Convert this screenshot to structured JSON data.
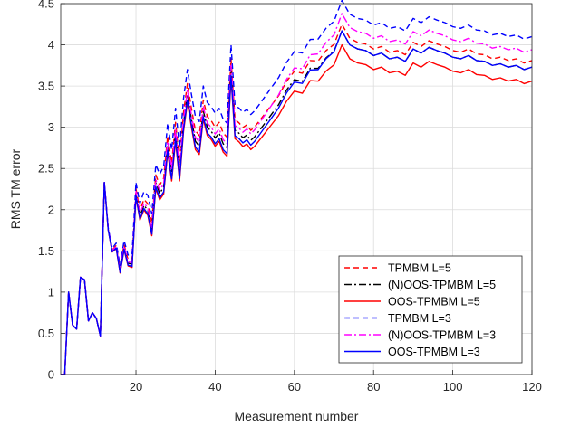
{
  "chart_data": {
    "type": "line",
    "xlabel": "Measurement number",
    "ylabel": "RMS TM error",
    "xlim": [
      1,
      120
    ],
    "ylim": [
      0,
      4.5
    ],
    "xticks": [
      20,
      40,
      60,
      80,
      100,
      120
    ],
    "yticks": [
      0,
      0.5,
      1,
      1.5,
      2,
      2.5,
      3,
      3.5,
      4,
      4.5
    ],
    "ytick_labels": [
      "0",
      "0.5",
      "1",
      "1.5",
      "2",
      "2.5",
      "3",
      "3.5",
      "4",
      "4.5"
    ],
    "grid": true,
    "legend_position": "bottom-right",
    "base_x": [
      1,
      2,
      3,
      4,
      5,
      6,
      7,
      8,
      9,
      10,
      11,
      12,
      13,
      14,
      15,
      16,
      17,
      18,
      19,
      20,
      21,
      22,
      23,
      24,
      25,
      26,
      27,
      28,
      29,
      30,
      31,
      32,
      33,
      34,
      35,
      36,
      37,
      38,
      39,
      40,
      41,
      42,
      43,
      44,
      45,
      46,
      47,
      48,
      49,
      50,
      52,
      54,
      56,
      58,
      60,
      62,
      64,
      66,
      68,
      70,
      72,
      74,
      76,
      78,
      80,
      82,
      84,
      86,
      88,
      90,
      92,
      94,
      96,
      98,
      100,
      102,
      104,
      106,
      108,
      110,
      112,
      114,
      116,
      118,
      120
    ],
    "base_y": [
      0.0,
      0.0,
      1.0,
      0.6,
      0.55,
      1.18,
      1.15,
      0.65,
      0.75,
      0.68,
      0.47,
      2.33,
      1.75,
      1.48,
      1.52,
      1.22,
      1.5,
      1.3,
      1.28,
      2.13,
      1.85,
      1.97,
      1.9,
      1.65,
      2.22,
      2.08,
      2.15,
      2.65,
      2.3,
      2.78,
      2.3,
      2.9,
      3.25,
      2.95,
      2.68,
      2.62,
      3.05,
      2.85,
      2.8,
      2.72,
      2.78,
      2.65,
      2.6,
      3.55,
      2.8,
      2.75,
      2.68,
      2.7,
      2.62,
      2.65,
      2.75,
      2.85,
      2.95,
      3.1,
      3.2,
      3.15,
      3.28,
      3.25,
      3.35,
      3.4,
      3.62,
      3.45,
      3.4,
      3.38,
      3.32,
      3.35,
      3.28,
      3.3,
      3.25,
      3.4,
      3.35,
      3.42,
      3.38,
      3.35,
      3.3,
      3.28,
      3.32,
      3.26,
      3.25,
      3.2,
      3.22,
      3.18,
      3.2,
      3.15,
      3.18
    ],
    "series": [
      {
        "name": "TPMBM L=5",
        "color": "#ff0000",
        "dash": "dashed",
        "offset_early": 0.28,
        "offset_late": 0.63
      },
      {
        "name": "(N)OOS-TPMBM L=5",
        "color": "#000000",
        "dash": "dashdot",
        "offset_early": 0.15,
        "offset_late": 0.55
      },
      {
        "name": "OOS-TPMBM L=5",
        "color": "#ff0000",
        "dash": "solid",
        "offset_early": 0.05,
        "offset_late": 0.38
      },
      {
        "name": "TPMBM L=3",
        "color": "#0000ff",
        "dash": "dashed",
        "offset_early": 0.45,
        "offset_late": 0.92
      },
      {
        "name": "(N)OOS-TPMBM L=3",
        "color": "#ff00ff",
        "dash": "dashdot",
        "offset_early": 0.2,
        "offset_late": 0.76
      },
      {
        "name": "OOS-TPMBM L=3",
        "color": "#0000ff",
        "dash": "solid",
        "offset_early": 0.08,
        "offset_late": 0.55
      }
    ]
  }
}
